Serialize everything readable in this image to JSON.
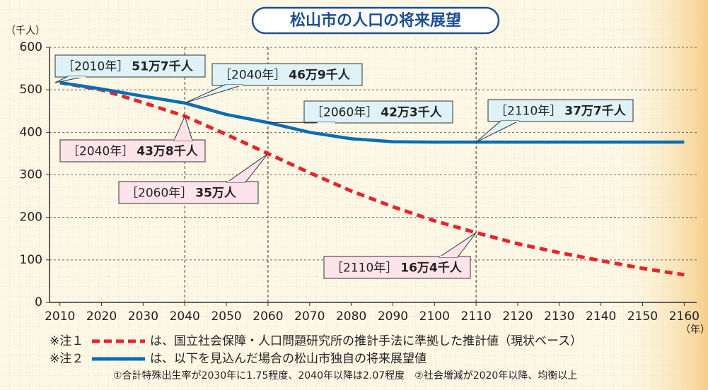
{
  "chart_data": {
    "type": "line",
    "title": "松山市の人口の将来展望",
    "y_label": "（千人）",
    "x_label": "（年）",
    "x": [
      2010,
      2020,
      2030,
      2040,
      2050,
      2060,
      2070,
      2080,
      2090,
      2100,
      2110,
      2120,
      2130,
      2140,
      2150,
      2160
    ],
    "series": [
      {
        "name": "は、国立社会保障・人口問題研究所の推計手法に準拠した推計値（現状ベース）",
        "color": "#e8242a",
        "dashed": true,
        "values": [
          517,
          500,
          470,
          438,
          395,
          350,
          305,
          262,
          225,
          192,
          164,
          138,
          117,
          98,
          80,
          65
        ]
      },
      {
        "name": "は、以下を見込んだ場合の松山市独自の将来展望値",
        "color": "#0a6db5",
        "dashed": false,
        "values": [
          517,
          502,
          485,
          469,
          442,
          423,
          400,
          385,
          378,
          377,
          377,
          377,
          377,
          377,
          377,
          377
        ]
      }
    ],
    "legend_notes": [
      "※注１",
      "※注２"
    ],
    "footnote": "①合計特殊出生率が2030年に1.75程度、2040年以降は2.07程度　②社会増減が2020年以降、均衡以上",
    "annotations": [
      {
        "year": "［2010年］",
        "label": "51万7千人"
      },
      {
        "year": "［2040年］",
        "label": "46万9千人"
      },
      {
        "year": "［2060年］",
        "label": "42万3千人"
      },
      {
        "year": "［2110年］",
        "label": "37万7千人"
      },
      {
        "year": "［2040年］",
        "label": "43万8千人"
      },
      {
        "year": "［2060年］",
        "label": "35万人"
      },
      {
        "year": "［2110年］",
        "label": "16万4千人"
      }
    ],
    "xlim": [
      2007.5,
      2163
    ],
    "xticks": [
      2010,
      2020,
      2030,
      2040,
      2050,
      2060,
      2070,
      2080,
      2090,
      2100,
      2110,
      2120,
      2130,
      2140,
      2150,
      2160
    ],
    "ylim": [
      0,
      600
    ],
    "yticks": [
      0,
      100,
      200,
      300,
      400,
      500,
      600
    ],
    "grid": true
  }
}
